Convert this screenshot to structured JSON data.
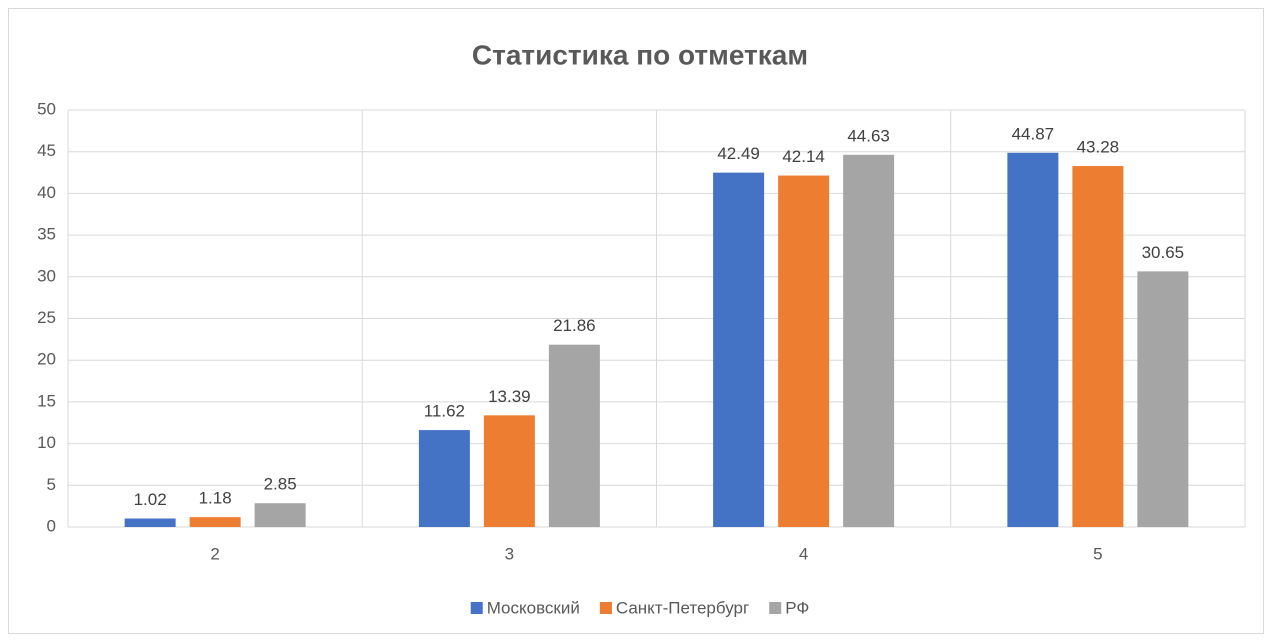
{
  "chart_data": {
    "type": "bar",
    "title": "Статистика по отметкам",
    "categories": [
      "2",
      "3",
      "4",
      "5"
    ],
    "series": [
      {
        "name": "Московский",
        "color": "#4472c4",
        "values": [
          1.02,
          11.62,
          42.49,
          44.87
        ]
      },
      {
        "name": "Санкт-Петербург",
        "color": "#ed7d31",
        "values": [
          1.18,
          13.39,
          42.14,
          43.28
        ]
      },
      {
        "name": "РФ",
        "color": "#a5a5a5",
        "values": [
          2.85,
          21.86,
          44.63,
          30.65
        ]
      }
    ],
    "ylim": [
      0,
      50
    ],
    "yticks": [
      0,
      5,
      10,
      15,
      20,
      25,
      30,
      35,
      40,
      45,
      50
    ],
    "grid": true,
    "legend": "bottom"
  }
}
